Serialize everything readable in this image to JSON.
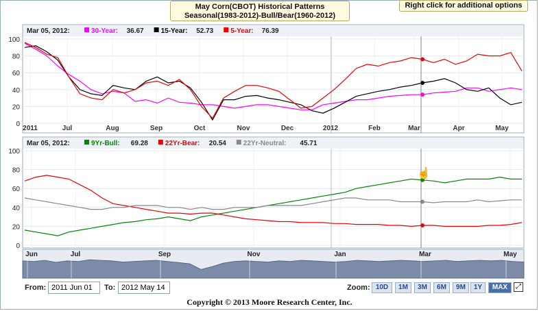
{
  "title_line1": "May Corn(CBOT) Historical Patterns",
  "title_line2": "Seasonal(1983-2012)-Bull/Bear(1960-2012)",
  "hint": "Right click for additional options",
  "chart_data": [
    {
      "type": "line",
      "panel": "top",
      "legend_date": "Mar 05, 2012:",
      "x_ticks": [
        "2011",
        "Jul",
        "Aug",
        "Sep",
        "Oct",
        "Nov",
        "Dec",
        "2012",
        "Feb",
        "Mar",
        "Apr",
        "May"
      ],
      "y_ticks": [
        "0",
        "20",
        "40",
        "60",
        "80",
        "100"
      ],
      "ylim": [
        0,
        100
      ],
      "grid": true,
      "series": [
        {
          "name": "30-Year:",
          "legend_value": "36.67",
          "color": "#ff00ff",
          "values": [
            95,
            88,
            80,
            68,
            58,
            50,
            40,
            35,
            38,
            36,
            26,
            28,
            24,
            30,
            25,
            24,
            22,
            22,
            20,
            18,
            20,
            22,
            22,
            20,
            18,
            16,
            16,
            22,
            24,
            26,
            28,
            28,
            30,
            32,
            33,
            34,
            34,
            36,
            37,
            38,
            42,
            42,
            38,
            40,
            42,
            40
          ]
        },
        {
          "name": "15-Year:",
          "legend_value": "52.73",
          "color": "#000000",
          "values": [
            90,
            92,
            85,
            75,
            55,
            40,
            35,
            33,
            45,
            42,
            40,
            50,
            55,
            48,
            50,
            42,
            25,
            4,
            28,
            28,
            32,
            33,
            30,
            28,
            25,
            22,
            15,
            12,
            18,
            25,
            32,
            35,
            38,
            40,
            43,
            45,
            48,
            50,
            53,
            48,
            40,
            38,
            42,
            30,
            22,
            25
          ]
        },
        {
          "name": "5-Year:",
          "legend_value": "76.39",
          "color": "#ee0000",
          "values": [
            96,
            90,
            82,
            78,
            55,
            35,
            30,
            28,
            40,
            36,
            40,
            48,
            50,
            45,
            52,
            40,
            20,
            6,
            30,
            38,
            45,
            45,
            42,
            38,
            28,
            18,
            20,
            30,
            40,
            52,
            65,
            70,
            68,
            72,
            74,
            78,
            76,
            72,
            76,
            70,
            74,
            82,
            80,
            80,
            84,
            62
          ]
        }
      ]
    },
    {
      "type": "line",
      "panel": "bottom",
      "legend_date": "Mar 05, 2012:",
      "x_ticks": [
        "Jun",
        "Jul",
        "Sep",
        "Nov",
        "Jan",
        "Mar",
        "May"
      ],
      "y_ticks": [
        "0",
        "20",
        "40",
        "60",
        "80",
        "100"
      ],
      "ylim": [
        0,
        100
      ],
      "grid": true,
      "series": [
        {
          "name": "9Yr-Bull:",
          "legend_value": "69.28",
          "color": "#008800",
          "values": [
            16,
            14,
            12,
            10,
            14,
            16,
            18,
            20,
            22,
            24,
            25,
            27,
            28,
            30,
            28,
            26,
            30,
            32,
            34,
            36,
            38,
            40,
            42,
            44,
            46,
            48,
            50,
            52,
            54,
            56,
            60,
            62,
            64,
            66,
            68,
            70,
            69,
            68,
            66,
            68,
            70,
            70,
            70,
            72,
            70,
            70
          ]
        },
        {
          "name": "22Yr-Bear:",
          "legend_value": "20.54",
          "color": "#ee0000",
          "values": [
            68,
            72,
            74,
            72,
            70,
            64,
            58,
            50,
            44,
            42,
            40,
            38,
            36,
            34,
            34,
            33,
            34,
            34,
            32,
            30,
            28,
            27,
            26,
            25,
            25,
            24,
            24,
            24,
            23,
            23,
            22,
            22,
            22,
            21,
            21,
            20,
            21,
            21,
            20,
            20,
            20,
            20,
            21,
            21,
            22,
            24
          ]
        },
        {
          "name": "22Yr-Neutral:",
          "legend_value": "45.71",
          "color": "#888888",
          "values": [
            50,
            48,
            46,
            44,
            42,
            40,
            38,
            38,
            40,
            40,
            42,
            42,
            42,
            40,
            40,
            38,
            40,
            38,
            38,
            40,
            40,
            40,
            42,
            42,
            42,
            42,
            44,
            46,
            48,
            50,
            50,
            48,
            48,
            48,
            46,
            46,
            46,
            45,
            46,
            46,
            46,
            48,
            46,
            47,
            48,
            48
          ]
        }
      ]
    }
  ],
  "navigator": {
    "labels": [
      "Jun",
      "Jul",
      "Sep",
      "Nov",
      "Jan",
      "Mar",
      "May"
    ],
    "values": [
      60,
      58,
      62,
      55,
      60,
      58,
      64,
      62,
      60,
      56,
      58,
      60,
      62,
      58,
      54,
      50,
      30,
      40,
      52,
      58,
      60,
      58,
      56,
      60,
      58,
      62,
      60,
      58,
      56,
      58,
      62,
      60,
      58,
      60,
      62,
      60,
      58,
      60,
      62,
      58,
      60,
      62,
      60,
      62,
      58,
      56
    ]
  },
  "controls": {
    "from_label": "From:",
    "from_value": "2011 Jun 01",
    "to_label": "To:",
    "to_value": "2012 May 14",
    "zoom_label": "Zoom:",
    "zoom_buttons": [
      "10D",
      "1M",
      "3M",
      "6M",
      "9M",
      "1Y",
      "MAX"
    ],
    "zoom_active": "MAX"
  },
  "copyright": "Copyright © 2013 Moore Research Center, Inc.",
  "icons": {
    "expand": "expand-icon",
    "cursor": "hand-cursor-icon"
  }
}
